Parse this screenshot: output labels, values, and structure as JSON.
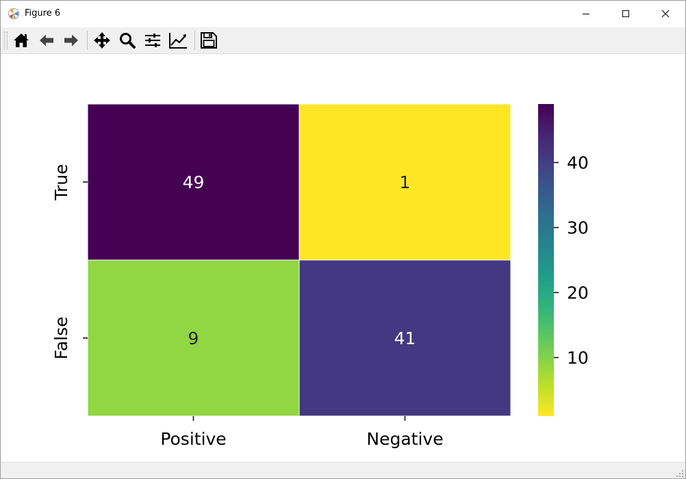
{
  "window": {
    "title": "Figure 6",
    "icon": "matplotlib-icon",
    "controls": [
      "minimize-icon",
      "maximize-icon",
      "close-icon"
    ]
  },
  "toolbar": {
    "buttons": [
      {
        "name": "home-icon",
        "tooltip": "Home"
      },
      {
        "name": "back-arrow-icon",
        "tooltip": "Back"
      },
      {
        "name": "forward-arrow-icon",
        "tooltip": "Forward"
      },
      {
        "name": "pan-icon",
        "tooltip": "Pan"
      },
      {
        "name": "zoom-icon",
        "tooltip": "Zoom"
      },
      {
        "name": "subplots-icon",
        "tooltip": "Subplots"
      },
      {
        "name": "axes-edit-icon",
        "tooltip": "Customize"
      },
      {
        "name": "save-icon",
        "tooltip": "Save"
      }
    ]
  },
  "chart_data": {
    "type": "heatmap",
    "title": "",
    "xlabel": "",
    "ylabel": "",
    "x_categories": [
      "Positive",
      "Negative"
    ],
    "y_categories": [
      "True",
      "False"
    ],
    "values": [
      [
        49,
        1
      ],
      [
        9,
        41
      ]
    ],
    "colormap": "viridis_r",
    "colorbar": {
      "range": [
        1,
        49
      ],
      "ticks": [
        10,
        20,
        30,
        40
      ],
      "tick_labels": [
        "10",
        "20",
        "30",
        "40"
      ]
    },
    "annotations": true,
    "grid": false,
    "colors": {
      "cell_separator": "#ffffff",
      "annot_light": "#ffffff",
      "annot_dark": "#262626"
    }
  }
}
